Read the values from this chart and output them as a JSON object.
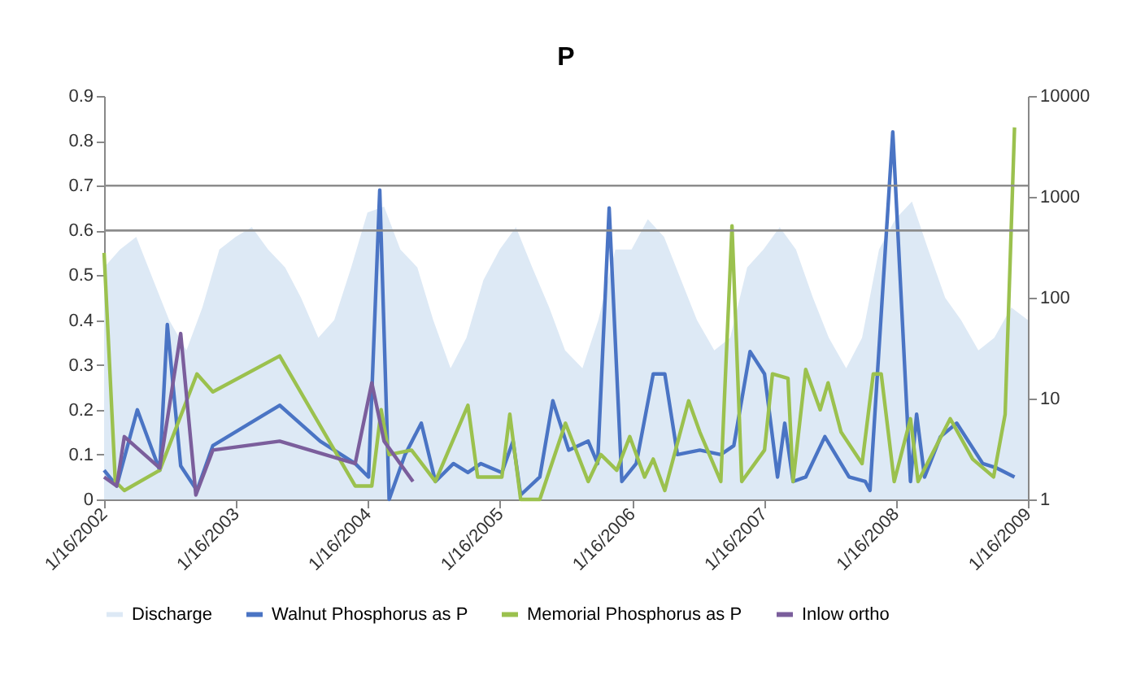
{
  "chart_data": {
    "type": "line",
    "title": "P",
    "xlim": [
      "2002-01-16",
      "2009-01-16"
    ],
    "xticks": [
      {
        "value": "2002-01-16",
        "label": "1/16/2002"
      },
      {
        "value": "2003-01-16",
        "label": "1/16/2003"
      },
      {
        "value": "2004-01-16",
        "label": "1/16/2004"
      },
      {
        "value": "2005-01-16",
        "label": "1/16/2005"
      },
      {
        "value": "2006-01-16",
        "label": "1/16/2006"
      },
      {
        "value": "2007-01-16",
        "label": "1/16/2007"
      },
      {
        "value": "2008-01-16",
        "label": "1/16/2008"
      },
      {
        "value": "2009-01-16",
        "label": "1/16/2009"
      }
    ],
    "ylim": [
      0,
      0.9
    ],
    "yticks": [
      0,
      0.1,
      0.2,
      0.3,
      0.4,
      0.5,
      0.6,
      0.7,
      0.8,
      0.9
    ],
    "y2lim": [
      1,
      10000
    ],
    "y2ticks": [
      1,
      10,
      100,
      1000,
      10000
    ],
    "log": "y2",
    "grid": false,
    "legend": "bottom",
    "marker": "none",
    "line_style": "solid",
    "ref_lines": [
      {
        "axis": "y",
        "value": 0.7,
        "color": "#8c8c8c"
      },
      {
        "axis": "y",
        "value": 0.6,
        "color": "#8c8c8c"
      }
    ],
    "series": [
      {
        "name": "Discharge",
        "type": "area",
        "axis": "y2",
        "color": "#dde9f5",
        "x": [
          "2002-01-16",
          "2002-03-01",
          "2002-04-15",
          "2002-06-01",
          "2002-07-15",
          "2002-09-01",
          "2002-10-15",
          "2002-12-01",
          "2003-01-15",
          "2003-03-01",
          "2003-04-15",
          "2003-06-01",
          "2003-07-15",
          "2003-09-01",
          "2003-10-15",
          "2003-12-01",
          "2004-01-15",
          "2004-03-01",
          "2004-04-15",
          "2004-06-01",
          "2004-07-15",
          "2004-09-01",
          "2004-10-15",
          "2004-12-01",
          "2005-01-15",
          "2005-03-01",
          "2005-04-15",
          "2005-06-01",
          "2005-07-15",
          "2005-09-01",
          "2005-10-15",
          "2005-12-01",
          "2006-01-15",
          "2006-03-01",
          "2006-04-15",
          "2006-06-01",
          "2006-07-15",
          "2006-09-01",
          "2006-10-15",
          "2006-12-01",
          "2007-01-15",
          "2007-03-01",
          "2007-04-15",
          "2007-06-01",
          "2007-07-15",
          "2007-09-01",
          "2007-10-15",
          "2007-12-01",
          "2008-01-15",
          "2008-03-01",
          "2008-04-15",
          "2008-06-01",
          "2008-07-15",
          "2008-09-01",
          "2008-10-15",
          "2008-12-01",
          "2009-01-16"
        ],
        "values": [
          200,
          300,
          400,
          150,
          60,
          30,
          80,
          300,
          400,
          500,
          300,
          200,
          100,
          40,
          60,
          200,
          700,
          800,
          300,
          200,
          60,
          20,
          40,
          150,
          300,
          500,
          200,
          80,
          30,
          20,
          60,
          300,
          300,
          600,
          400,
          150,
          60,
          30,
          40,
          200,
          300,
          500,
          300,
          100,
          40,
          20,
          40,
          300,
          600,
          900,
          300,
          100,
          60,
          30,
          40,
          80,
          60
        ]
      },
      {
        "name": "Walnut Phosphorus as P",
        "color": "#4a74c4",
        "x": [
          "2002-01-16",
          "2002-02-20",
          "2002-04-18",
          "2002-06-19",
          "2002-07-10",
          "2002-08-16",
          "2002-09-30",
          "2002-11-13",
          "2003-05-17",
          "2003-09-06",
          "2003-12-12",
          "2004-01-18",
          "2004-02-18",
          "2004-03-15",
          "2004-04-28",
          "2004-06-12",
          "2004-07-21",
          "2004-09-09",
          "2004-10-19",
          "2004-11-24",
          "2005-01-21",
          "2005-02-21",
          "2005-03-14",
          "2005-05-06",
          "2005-06-11",
          "2005-07-25",
          "2005-09-17",
          "2005-10-13",
          "2005-11-14",
          "2005-12-19",
          "2006-01-28",
          "2006-03-16",
          "2006-04-17",
          "2006-05-22",
          "2006-07-23",
          "2006-09-19",
          "2006-10-25",
          "2006-12-09",
          "2007-01-18",
          "2007-02-23",
          "2007-03-15",
          "2007-04-07",
          "2007-05-12",
          "2007-07-04",
          "2007-09-09",
          "2007-10-24",
          "2007-11-06",
          "2008-01-08",
          "2008-02-26",
          "2008-03-14",
          "2008-04-05",
          "2008-05-19",
          "2008-07-03",
          "2008-09-13",
          "2008-10-22",
          "2008-12-10"
        ],
        "values": [
          0.065,
          0.03,
          0.2,
          0.065,
          0.39,
          0.075,
          0.02,
          0.12,
          0.21,
          0.13,
          0.08,
          0.05,
          0.69,
          0,
          0.1,
          0.17,
          0.04,
          0.08,
          0.06,
          0.08,
          0.06,
          0.13,
          0.01,
          0.05,
          0.22,
          0.11,
          0.13,
          0.08,
          0.65,
          0.04,
          0.08,
          0.28,
          0.28,
          0.1,
          0.11,
          0.1,
          0.12,
          0.33,
          0.28,
          0.05,
          0.17,
          0.04,
          0.05,
          0.14,
          0.05,
          0.04,
          0.02,
          0.82,
          0.04,
          0.19,
          0.05,
          0.14,
          0.17,
          0.08,
          0.07,
          0.05
        ]
      },
      {
        "name": "Memorial Phosphorus as P",
        "color": "#9bc14e",
        "x": [
          "2002-01-16",
          "2002-02-16",
          "2002-03-13",
          "2002-06-19",
          "2002-09-30",
          "2002-11-13",
          "2003-05-17",
          "2003-12-12",
          "2004-01-27",
          "2004-02-22",
          "2004-03-15",
          "2004-05-16",
          "2004-07-21",
          "2004-10-19",
          "2004-11-15",
          "2005-01-21",
          "2005-02-12",
          "2005-03-14",
          "2005-05-06",
          "2005-07-16",
          "2005-09-17",
          "2005-10-22",
          "2005-12-05",
          "2006-01-10",
          "2006-02-20",
          "2006-03-16",
          "2006-04-17",
          "2006-06-22",
          "2006-07-23",
          "2006-09-19",
          "2006-10-20",
          "2006-11-16",
          "2007-01-18",
          "2007-02-09",
          "2007-03-24",
          "2007-04-07",
          "2007-05-12",
          "2007-06-21",
          "2007-07-13",
          "2007-08-18",
          "2007-10-15",
          "2007-11-15",
          "2007-12-07",
          "2008-01-12",
          "2008-02-26",
          "2008-03-18",
          "2008-06-15",
          "2008-08-16",
          "2008-10-13",
          "2008-11-14",
          "2008-12-10"
        ],
        "values": [
          0.55,
          0.04,
          0.02,
          0.065,
          0.28,
          0.24,
          0.32,
          0.03,
          0.03,
          0.2,
          0.1,
          0.11,
          0.04,
          0.21,
          0.05,
          0.05,
          0.19,
          0,
          0,
          0.17,
          0.04,
          0.1,
          0.065,
          0.14,
          0.05,
          0.09,
          0.02,
          0.22,
          0.15,
          0.04,
          0.61,
          0.04,
          0.11,
          0.28,
          0.27,
          0.04,
          0.29,
          0.2,
          0.26,
          0.15,
          0.08,
          0.28,
          0.28,
          0.04,
          0.18,
          0.04,
          0.18,
          0.09,
          0.05,
          0.19,
          0.83
        ]
      },
      {
        "name": "Inlow ortho",
        "color": "#7b5e9c",
        "x": [
          "2002-01-16",
          "2002-02-20",
          "2002-03-13",
          "2002-06-19",
          "2002-08-16",
          "2002-09-27",
          "2002-11-13",
          "2003-05-17",
          "2003-12-12",
          "2004-01-27",
          "2004-03-01",
          "2004-05-20"
        ],
        "values": [
          0.05,
          0.03,
          0.14,
          0.07,
          0.37,
          0.01,
          0.11,
          0.13,
          0.08,
          0.26,
          0.13,
          0.04
        ]
      }
    ]
  }
}
